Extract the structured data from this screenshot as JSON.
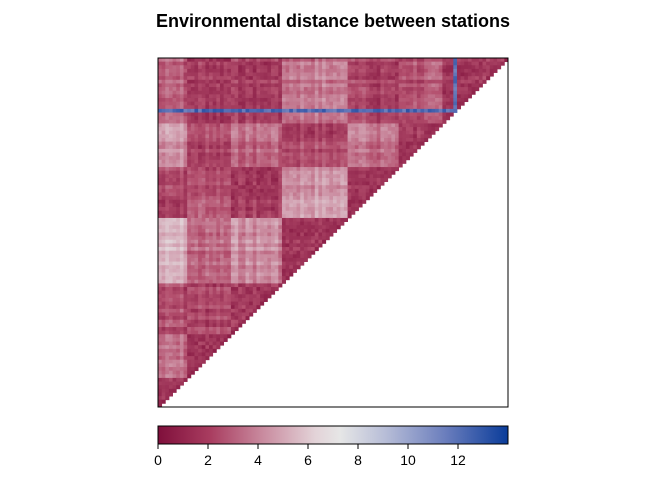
{
  "chart_data": {
    "type": "heatmap",
    "title": "Environmental distance between stations",
    "xlabel": "",
    "ylabel": "",
    "layout": "lower-triangle",
    "n_stations": 96,
    "value_range": [
      0,
      14
    ],
    "colorbar": {
      "ticks": [
        0,
        2,
        4,
        6,
        8,
        10,
        12
      ],
      "range": [
        0,
        14
      ],
      "colors": [
        "#7f0f3b",
        "#b4506e",
        "#d3a3b3",
        "#e6e6e6",
        "#a7afd0",
        "#5d72b6",
        "#0a3c9a"
      ]
    },
    "legend": "bottom",
    "grid": false
  }
}
